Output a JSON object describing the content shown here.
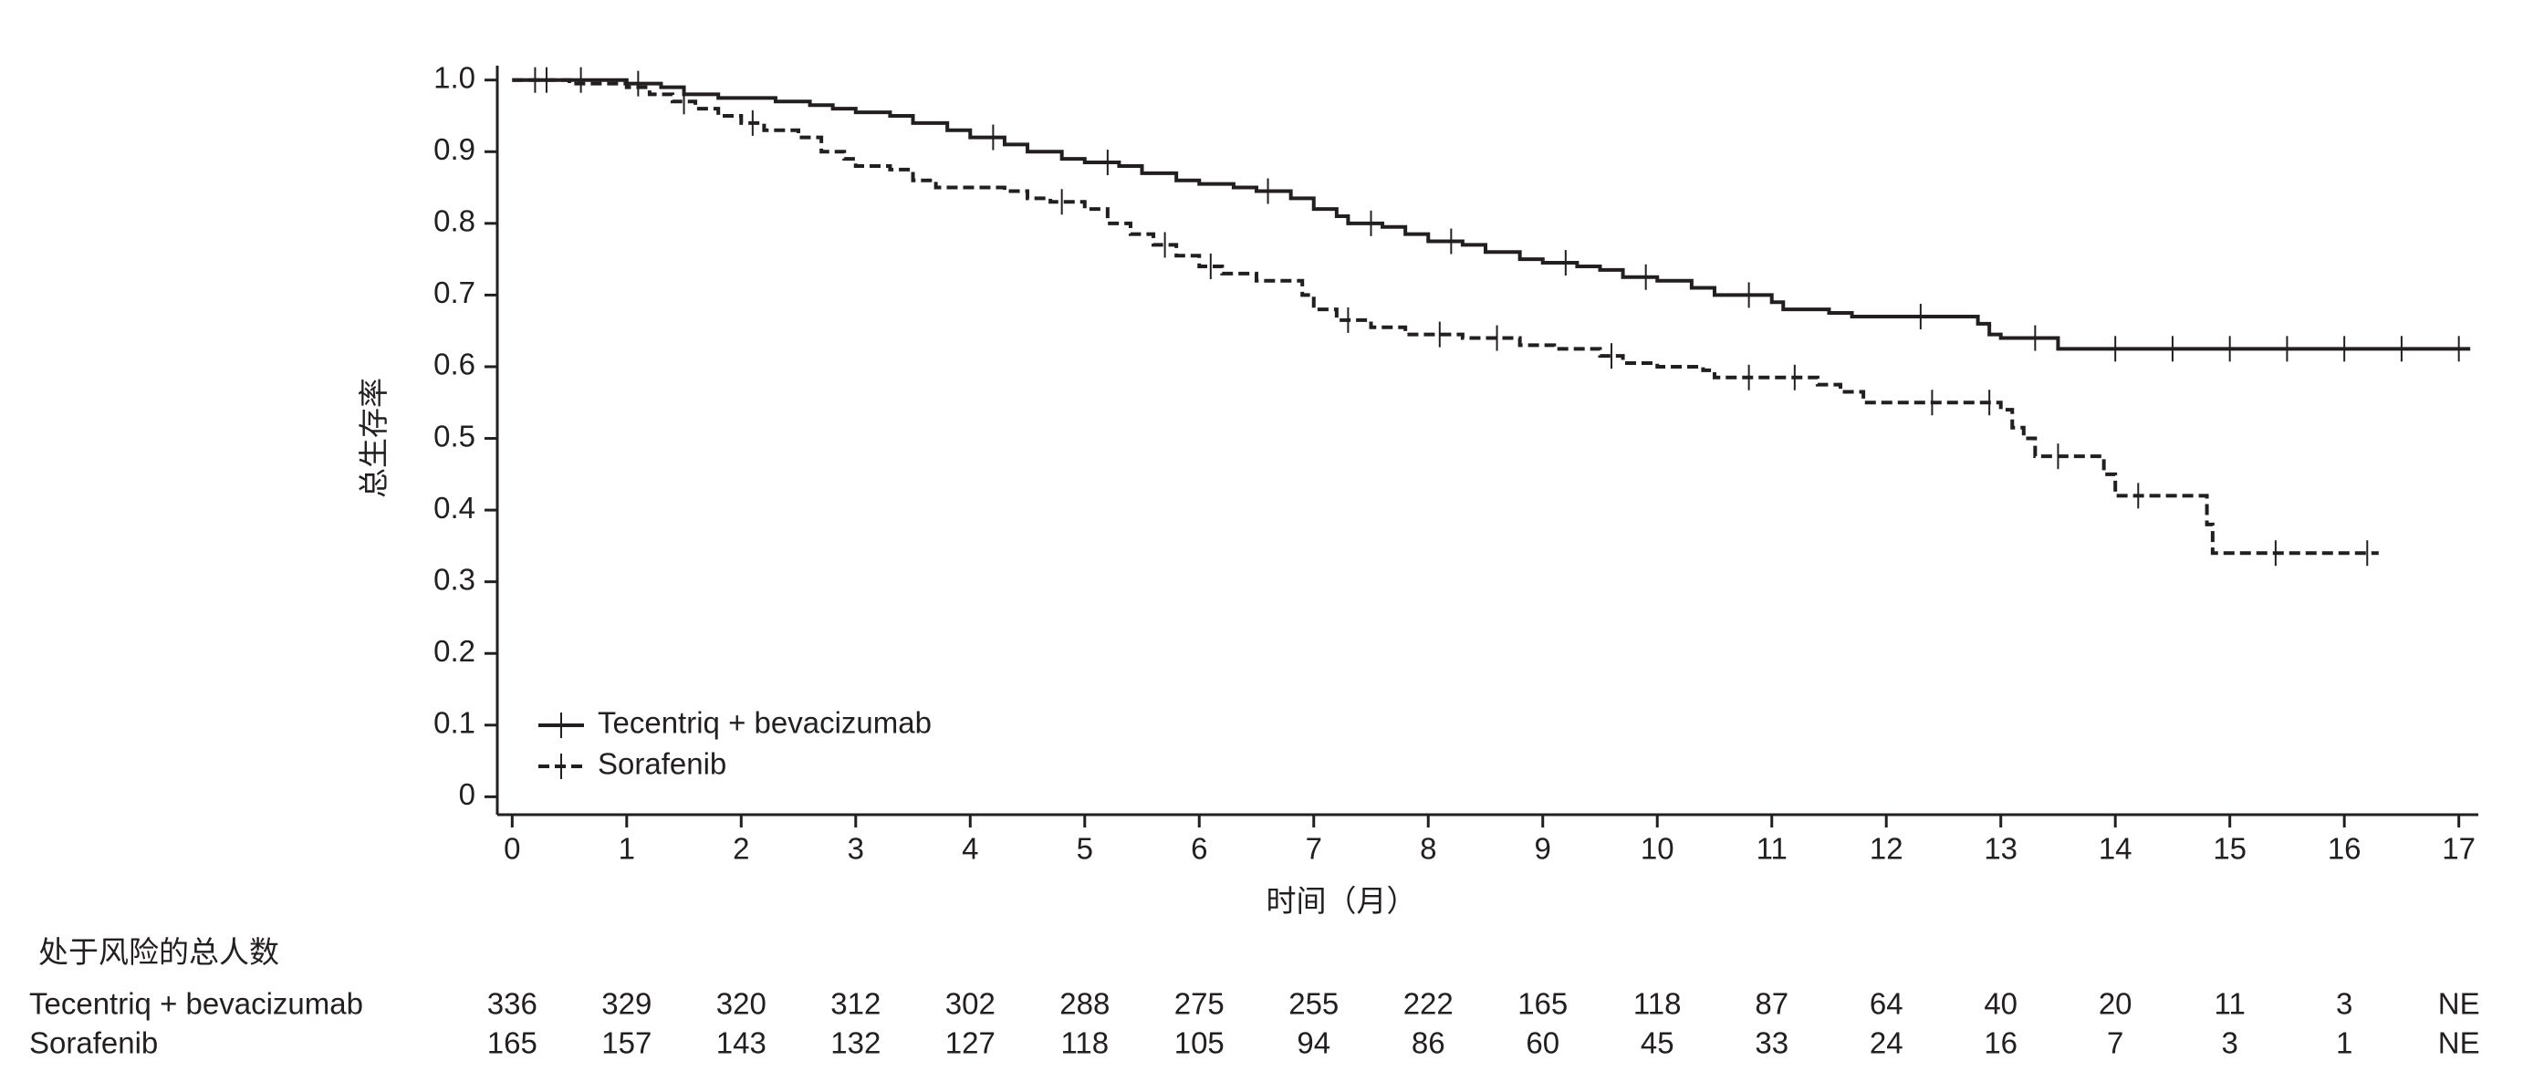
{
  "chart_data": {
    "type": "step",
    "y_label": "总生存率",
    "x_label": "时间（月）",
    "xlim": [
      -0.13,
      17.17
    ],
    "ylim": [
      -0.025,
      1.02
    ],
    "xticks": [
      0,
      1,
      2,
      3,
      4,
      5,
      6,
      7,
      8,
      9,
      10,
      11,
      12,
      13,
      14,
      15,
      16,
      17
    ],
    "yticks": [
      0,
      0.1,
      0.2,
      0.3,
      0.4,
      0.5,
      0.6,
      0.7,
      0.8,
      0.9,
      {
        "value": 1,
        "label": "1.0"
      }
    ],
    "legend": "lower left",
    "series": [
      {
        "name": "Tecentriq + bevacizumab",
        "color": "#231f20",
        "dash": "solid",
        "x": [
          0,
          0.5,
          1.0,
          1.3,
          1.5,
          1.8,
          2.3,
          2.6,
          2.8,
          3.0,
          3.3,
          3.5,
          3.8,
          4.0,
          4.3,
          4.5,
          4.8,
          5.0,
          5.3,
          5.5,
          5.8,
          6.0,
          6.3,
          6.5,
          6.8,
          7.0,
          7.2,
          7.3,
          7.6,
          7.8,
          8.0,
          8.3,
          8.5,
          8.8,
          9.0,
          9.3,
          9.5,
          9.7,
          10.0,
          10.3,
          10.5,
          11.0,
          11.1,
          11.5,
          11.7,
          12.8,
          12.9,
          13.0,
          13.5,
          17.1
        ],
        "values": [
          1.0,
          1.0,
          0.995,
          0.99,
          0.98,
          0.975,
          0.97,
          0.965,
          0.96,
          0.955,
          0.95,
          0.94,
          0.93,
          0.92,
          0.91,
          0.9,
          0.89,
          0.885,
          0.88,
          0.87,
          0.86,
          0.855,
          0.85,
          0.845,
          0.835,
          0.82,
          0.81,
          0.8,
          0.795,
          0.785,
          0.775,
          0.77,
          0.76,
          0.75,
          0.745,
          0.74,
          0.735,
          0.725,
          0.72,
          0.71,
          0.7,
          0.69,
          0.68,
          0.675,
          0.67,
          0.66,
          0.645,
          0.64,
          0.625,
          0.625
        ],
        "censor_x": [
          0.2,
          0.6,
          1.1,
          4.2,
          5.2,
          6.6,
          7.5,
          8.2,
          9.2,
          9.9,
          10.8,
          12.3,
          13.3,
          14.0,
          14.5,
          15.0,
          15.5,
          16.0,
          16.5,
          17.0
        ],
        "censor_y": [
          1.0,
          1.0,
          0.995,
          0.92,
          0.885,
          0.845,
          0.8,
          0.775,
          0.745,
          0.725,
          0.7,
          0.67,
          0.64,
          0.625,
          0.625,
          0.625,
          0.625,
          0.625,
          0.625,
          0.625
        ]
      },
      {
        "name": "Sorafenib",
        "color": "#231f20",
        "dash": "dashed",
        "x": [
          0,
          0.5,
          1.0,
          1.2,
          1.4,
          1.6,
          1.8,
          2.0,
          2.2,
          2.5,
          2.7,
          2.9,
          3.0,
          3.3,
          3.5,
          3.7,
          4.3,
          4.5,
          4.7,
          5.0,
          5.2,
          5.4,
          5.6,
          5.8,
          6.0,
          6.2,
          6.5,
          6.9,
          7.0,
          7.2,
          7.5,
          7.8,
          8.3,
          8.8,
          9.1,
          9.5,
          9.7,
          10.0,
          10.4,
          10.5,
          11.4,
          11.6,
          11.8,
          13.0,
          13.1,
          13.2,
          13.3,
          13.9,
          14.0,
          14.8,
          14.85,
          16.3
        ],
        "values": [
          1.0,
          0.995,
          0.99,
          0.98,
          0.97,
          0.96,
          0.95,
          0.94,
          0.93,
          0.92,
          0.9,
          0.89,
          0.88,
          0.875,
          0.86,
          0.85,
          0.845,
          0.835,
          0.83,
          0.82,
          0.8,
          0.785,
          0.77,
          0.755,
          0.74,
          0.73,
          0.72,
          0.7,
          0.68,
          0.665,
          0.655,
          0.645,
          0.64,
          0.63,
          0.625,
          0.615,
          0.605,
          0.6,
          0.595,
          0.585,
          0.575,
          0.565,
          0.55,
          0.54,
          0.515,
          0.5,
          0.475,
          0.45,
          0.42,
          0.38,
          0.34,
          0.34
        ],
        "censor_x": [
          0.3,
          1.5,
          2.1,
          4.8,
          5.7,
          6.1,
          7.3,
          8.1,
          8.6,
          9.6,
          10.8,
          11.2,
          12.4,
          12.9,
          13.5,
          14.2,
          15.4,
          16.2
        ],
        "censor_y": [
          1.0,
          0.97,
          0.94,
          0.83,
          0.77,
          0.74,
          0.665,
          0.645,
          0.64,
          0.615,
          0.585,
          0.585,
          0.55,
          0.55,
          0.475,
          0.42,
          0.34,
          0.34
        ]
      }
    ]
  },
  "risk_table": {
    "title": "处于风险的总人数",
    "rows": [
      {
        "name": "Tecentriq + bevacizumab",
        "values": [
          336,
          329,
          320,
          312,
          302,
          288,
          275,
          255,
          222,
          165,
          118,
          87,
          64,
          40,
          20,
          11,
          3,
          "NE"
        ]
      },
      {
        "name": "Sorafenib",
        "values": [
          165,
          157,
          143,
          132,
          127,
          118,
          105,
          94,
          86,
          60,
          45,
          33,
          24,
          16,
          7,
          3,
          1,
          "NE"
        ]
      }
    ]
  }
}
